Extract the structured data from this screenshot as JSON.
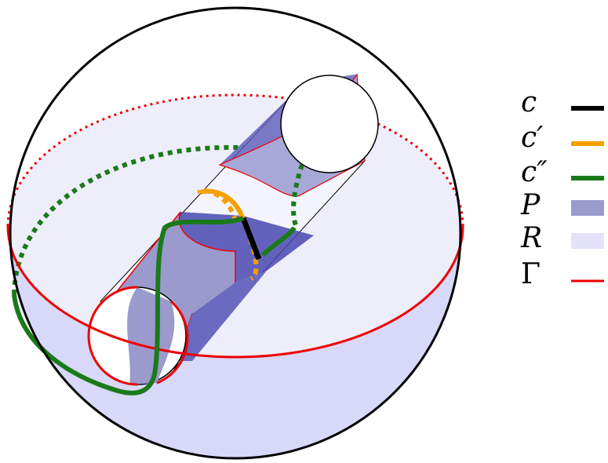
{
  "legend": {
    "items": [
      {
        "label": "c"
      },
      {
        "label": "c′"
      },
      {
        "label": "c″"
      },
      {
        "label": "P"
      },
      {
        "label": "R"
      },
      {
        "label": "Γ"
      }
    ]
  }
}
